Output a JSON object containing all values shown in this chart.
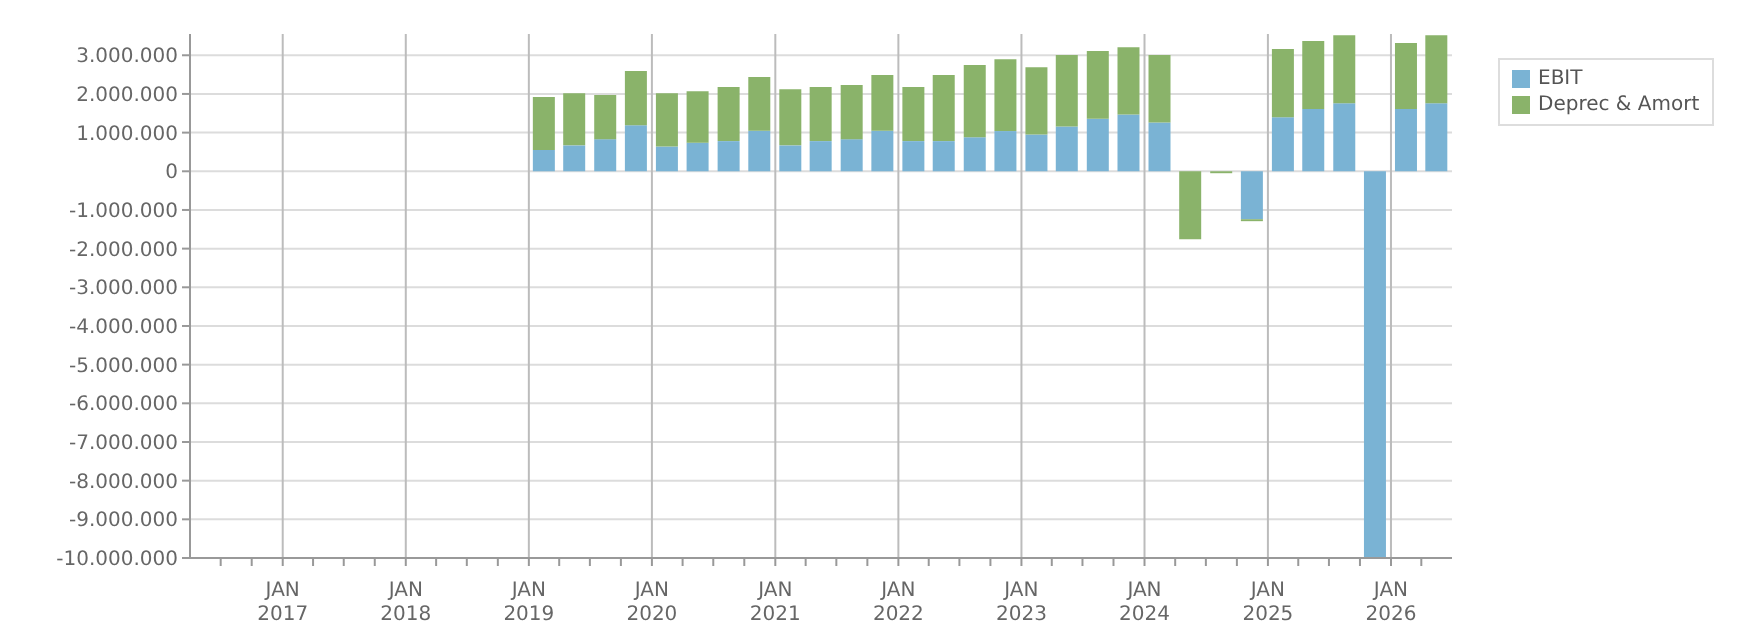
{
  "chart_data": {
    "type": "bar",
    "stacked": true,
    "x": [
      "2019-02-15",
      "2019-05-16",
      "2019-08-16",
      "2019-11-15",
      "2020-02-15",
      "2020-05-16",
      "2020-08-16",
      "2020-11-15",
      "2021-02-15",
      "2021-05-16",
      "2021-08-16",
      "2021-11-15",
      "2022-02-15",
      "2022-05-16",
      "2022-08-16",
      "2022-11-15",
      "2023-02-15",
      "2023-05-16",
      "2023-08-16",
      "2023-11-15",
      "2024-02-15",
      "2024-05-16",
      "2024-08-16",
      "2024-11-15",
      "2025-02-15",
      "2025-05-16",
      "2025-08-16",
      "2025-11-15",
      "2026-02-15",
      "2026-05-16"
    ],
    "series": [
      {
        "name": "EBIT",
        "color": "#7ab3d4",
        "values": [
          550000,
          670000,
          830000,
          1190000,
          640000,
          740000,
          780000,
          1050000,
          670000,
          780000,
          830000,
          1050000,
          780000,
          780000,
          880000,
          1040000,
          950000,
          1160000,
          1360000,
          1470000,
          1260000,
          null,
          null,
          -1240000,
          1400000,
          1610000,
          1760000,
          -10000000,
          1610000,
          1760000
        ]
      },
      {
        "name": "Deprec & Amort",
        "color": "#8ab36a",
        "values": [
          1370000,
          1350000,
          1140000,
          1400000,
          1380000,
          1330000,
          1400000,
          1390000,
          1450000,
          1400000,
          1400000,
          1440000,
          1400000,
          1710000,
          1870000,
          1860000,
          1740000,
          1850000,
          1750000,
          1740000,
          1750000,
          -1760000,
          -50000,
          -50000,
          1760000,
          1760000,
          1760000,
          -50000,
          1710000,
          1760000
        ]
      }
    ],
    "xlim": [
      "2016-04",
      "2026-07"
    ],
    "xticks": [
      {
        "value": "2016-07",
        "label": null
      },
      {
        "value": "2016-10",
        "label": null
      },
      {
        "value": "2017-01",
        "label": "JAN\n2017"
      },
      {
        "value": "2017-04",
        "label": null
      },
      {
        "value": "2017-07",
        "label": null
      },
      {
        "value": "2017-10",
        "label": null
      },
      {
        "value": "2018-01",
        "label": "JAN\n2018"
      },
      {
        "value": "2018-04",
        "label": null
      },
      {
        "value": "2018-07",
        "label": null
      },
      {
        "value": "2018-10",
        "label": null
      },
      {
        "value": "2019-01",
        "label": "JAN\n2019"
      },
      {
        "value": "2019-04",
        "label": null
      },
      {
        "value": "2019-07",
        "label": null
      },
      {
        "value": "2019-10",
        "label": null
      },
      {
        "value": "2020-01",
        "label": "JAN\n2020"
      },
      {
        "value": "2020-04",
        "label": null
      },
      {
        "value": "2020-07",
        "label": null
      },
      {
        "value": "2020-10",
        "label": null
      },
      {
        "value": "2021-01",
        "label": "JAN\n2021"
      },
      {
        "value": "2021-04",
        "label": null
      },
      {
        "value": "2021-07",
        "label": null
      },
      {
        "value": "2021-10",
        "label": null
      },
      {
        "value": "2022-01",
        "label": "JAN\n2022"
      },
      {
        "value": "2022-04",
        "label": null
      },
      {
        "value": "2022-07",
        "label": null
      },
      {
        "value": "2022-10",
        "label": null
      },
      {
        "value": "2023-01",
        "label": "JAN\n2023"
      },
      {
        "value": "2023-04",
        "label": null
      },
      {
        "value": "2023-07",
        "label": null
      },
      {
        "value": "2023-10",
        "label": null
      },
      {
        "value": "2024-01",
        "label": "JAN\n2024"
      },
      {
        "value": "2024-04",
        "label": null
      },
      {
        "value": "2024-07",
        "label": null
      },
      {
        "value": "2024-10",
        "label": null
      },
      {
        "value": "2025-01",
        "label": "JAN\n2025"
      },
      {
        "value": "2025-04",
        "label": null
      },
      {
        "value": "2025-07",
        "label": null
      },
      {
        "value": "2025-10",
        "label": null
      },
      {
        "value": "2026-01",
        "label": "JAN\n2026"
      },
      {
        "value": "2026-04",
        "label": null
      }
    ],
    "ylim": [
      -10000000,
      3550000
    ],
    "yticks": [
      {
        "value": -10000000,
        "label": "-10.000.000"
      },
      {
        "value": -9000000,
        "label": "-9.000.000"
      },
      {
        "value": -8000000,
        "label": "-8.000.000"
      },
      {
        "value": -7000000,
        "label": "-7.000.000"
      },
      {
        "value": -6000000,
        "label": "-6.000.000"
      },
      {
        "value": -5000000,
        "label": "-5.000.000"
      },
      {
        "value": -4000000,
        "label": "-4.000.000"
      },
      {
        "value": -3000000,
        "label": "-3.000.000"
      },
      {
        "value": -2000000,
        "label": "-2.000.000"
      },
      {
        "value": -1000000,
        "label": "-1.000.000"
      },
      {
        "value": 0,
        "label": "0"
      },
      {
        "value": 1000000,
        "label": "1.000.000"
      },
      {
        "value": 2000000,
        "label": "2.000.000"
      },
      {
        "value": 3000000,
        "label": "3.000.000"
      }
    ],
    "grid": true,
    "legend": "top right"
  }
}
